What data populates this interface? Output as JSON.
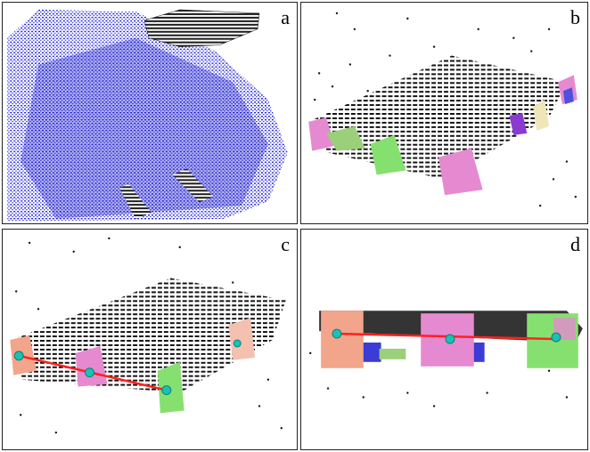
{
  "figure": {
    "panels": [
      {
        "id": "a",
        "label": "a"
      },
      {
        "id": "b",
        "label": "b"
      },
      {
        "id": "c",
        "label": "c"
      },
      {
        "id": "d",
        "label": "d"
      }
    ]
  },
  "colors": {
    "cloud_blue": "#1a1ad6",
    "points_black": "#111111",
    "segment_pink": "#e58ad0",
    "segment_green": "#86e070",
    "segment_salmon": "#f2a58a",
    "segment_violet": "#8a3ad0",
    "segment_beige": "#efe6b8",
    "line_red": "#ff2020",
    "marker_teal": "#19c2b5"
  }
}
